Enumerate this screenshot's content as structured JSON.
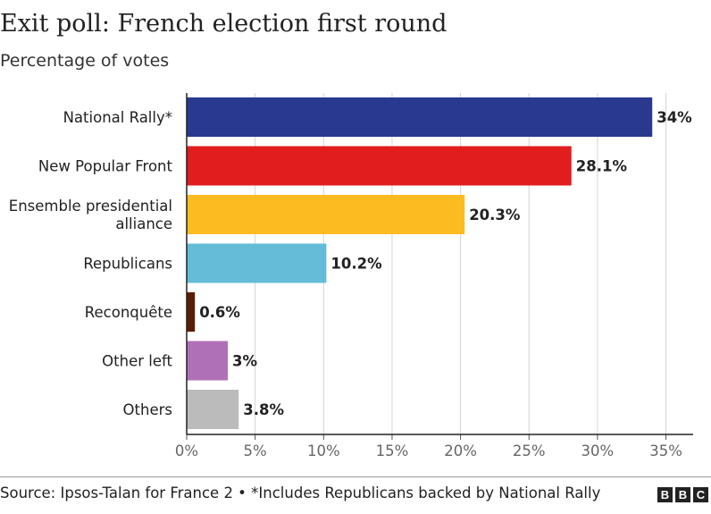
{
  "chart_data": {
    "type": "bar",
    "orientation": "horizontal",
    "title": "Exit poll: French election first round",
    "subtitle": "Percentage of votes",
    "categories": [
      {
        "lines": [
          "National Rally*"
        ]
      },
      {
        "lines": [
          "New Popular Front"
        ]
      },
      {
        "lines": [
          "Ensemble presidential",
          "alliance"
        ]
      },
      {
        "lines": [
          "Republicans"
        ]
      },
      {
        "lines": [
          "Reconquête"
        ]
      },
      {
        "lines": [
          "Other left"
        ]
      },
      {
        "lines": [
          "Others"
        ]
      }
    ],
    "values": [
      34,
      28.1,
      20.3,
      10.2,
      0.6,
      3,
      3.8
    ],
    "value_labels": [
      "34%",
      "28.1%",
      "20.3%",
      "10.2%",
      "0.6%",
      "3%",
      "3.8%"
    ],
    "colors": [
      "#2a3990",
      "#e11d1d",
      "#fdbb22",
      "#64bcd9",
      "#5a1e06",
      "#b070b8",
      "#bbbbbb"
    ],
    "xlim": [
      0,
      37
    ],
    "ticks": [
      0,
      5,
      10,
      15,
      20,
      25,
      30,
      35
    ],
    "tick_labels": [
      "0%",
      "5%",
      "10%",
      "15%",
      "20%",
      "25%",
      "30%",
      "35%"
    ],
    "grid": true,
    "xlabel": "",
    "ylabel": ""
  },
  "footer": {
    "source": "Source: Ipsos-Talan for France 2 • *Includes Republicans backed by National Rally",
    "logo_letters": [
      "B",
      "B",
      "C"
    ]
  }
}
